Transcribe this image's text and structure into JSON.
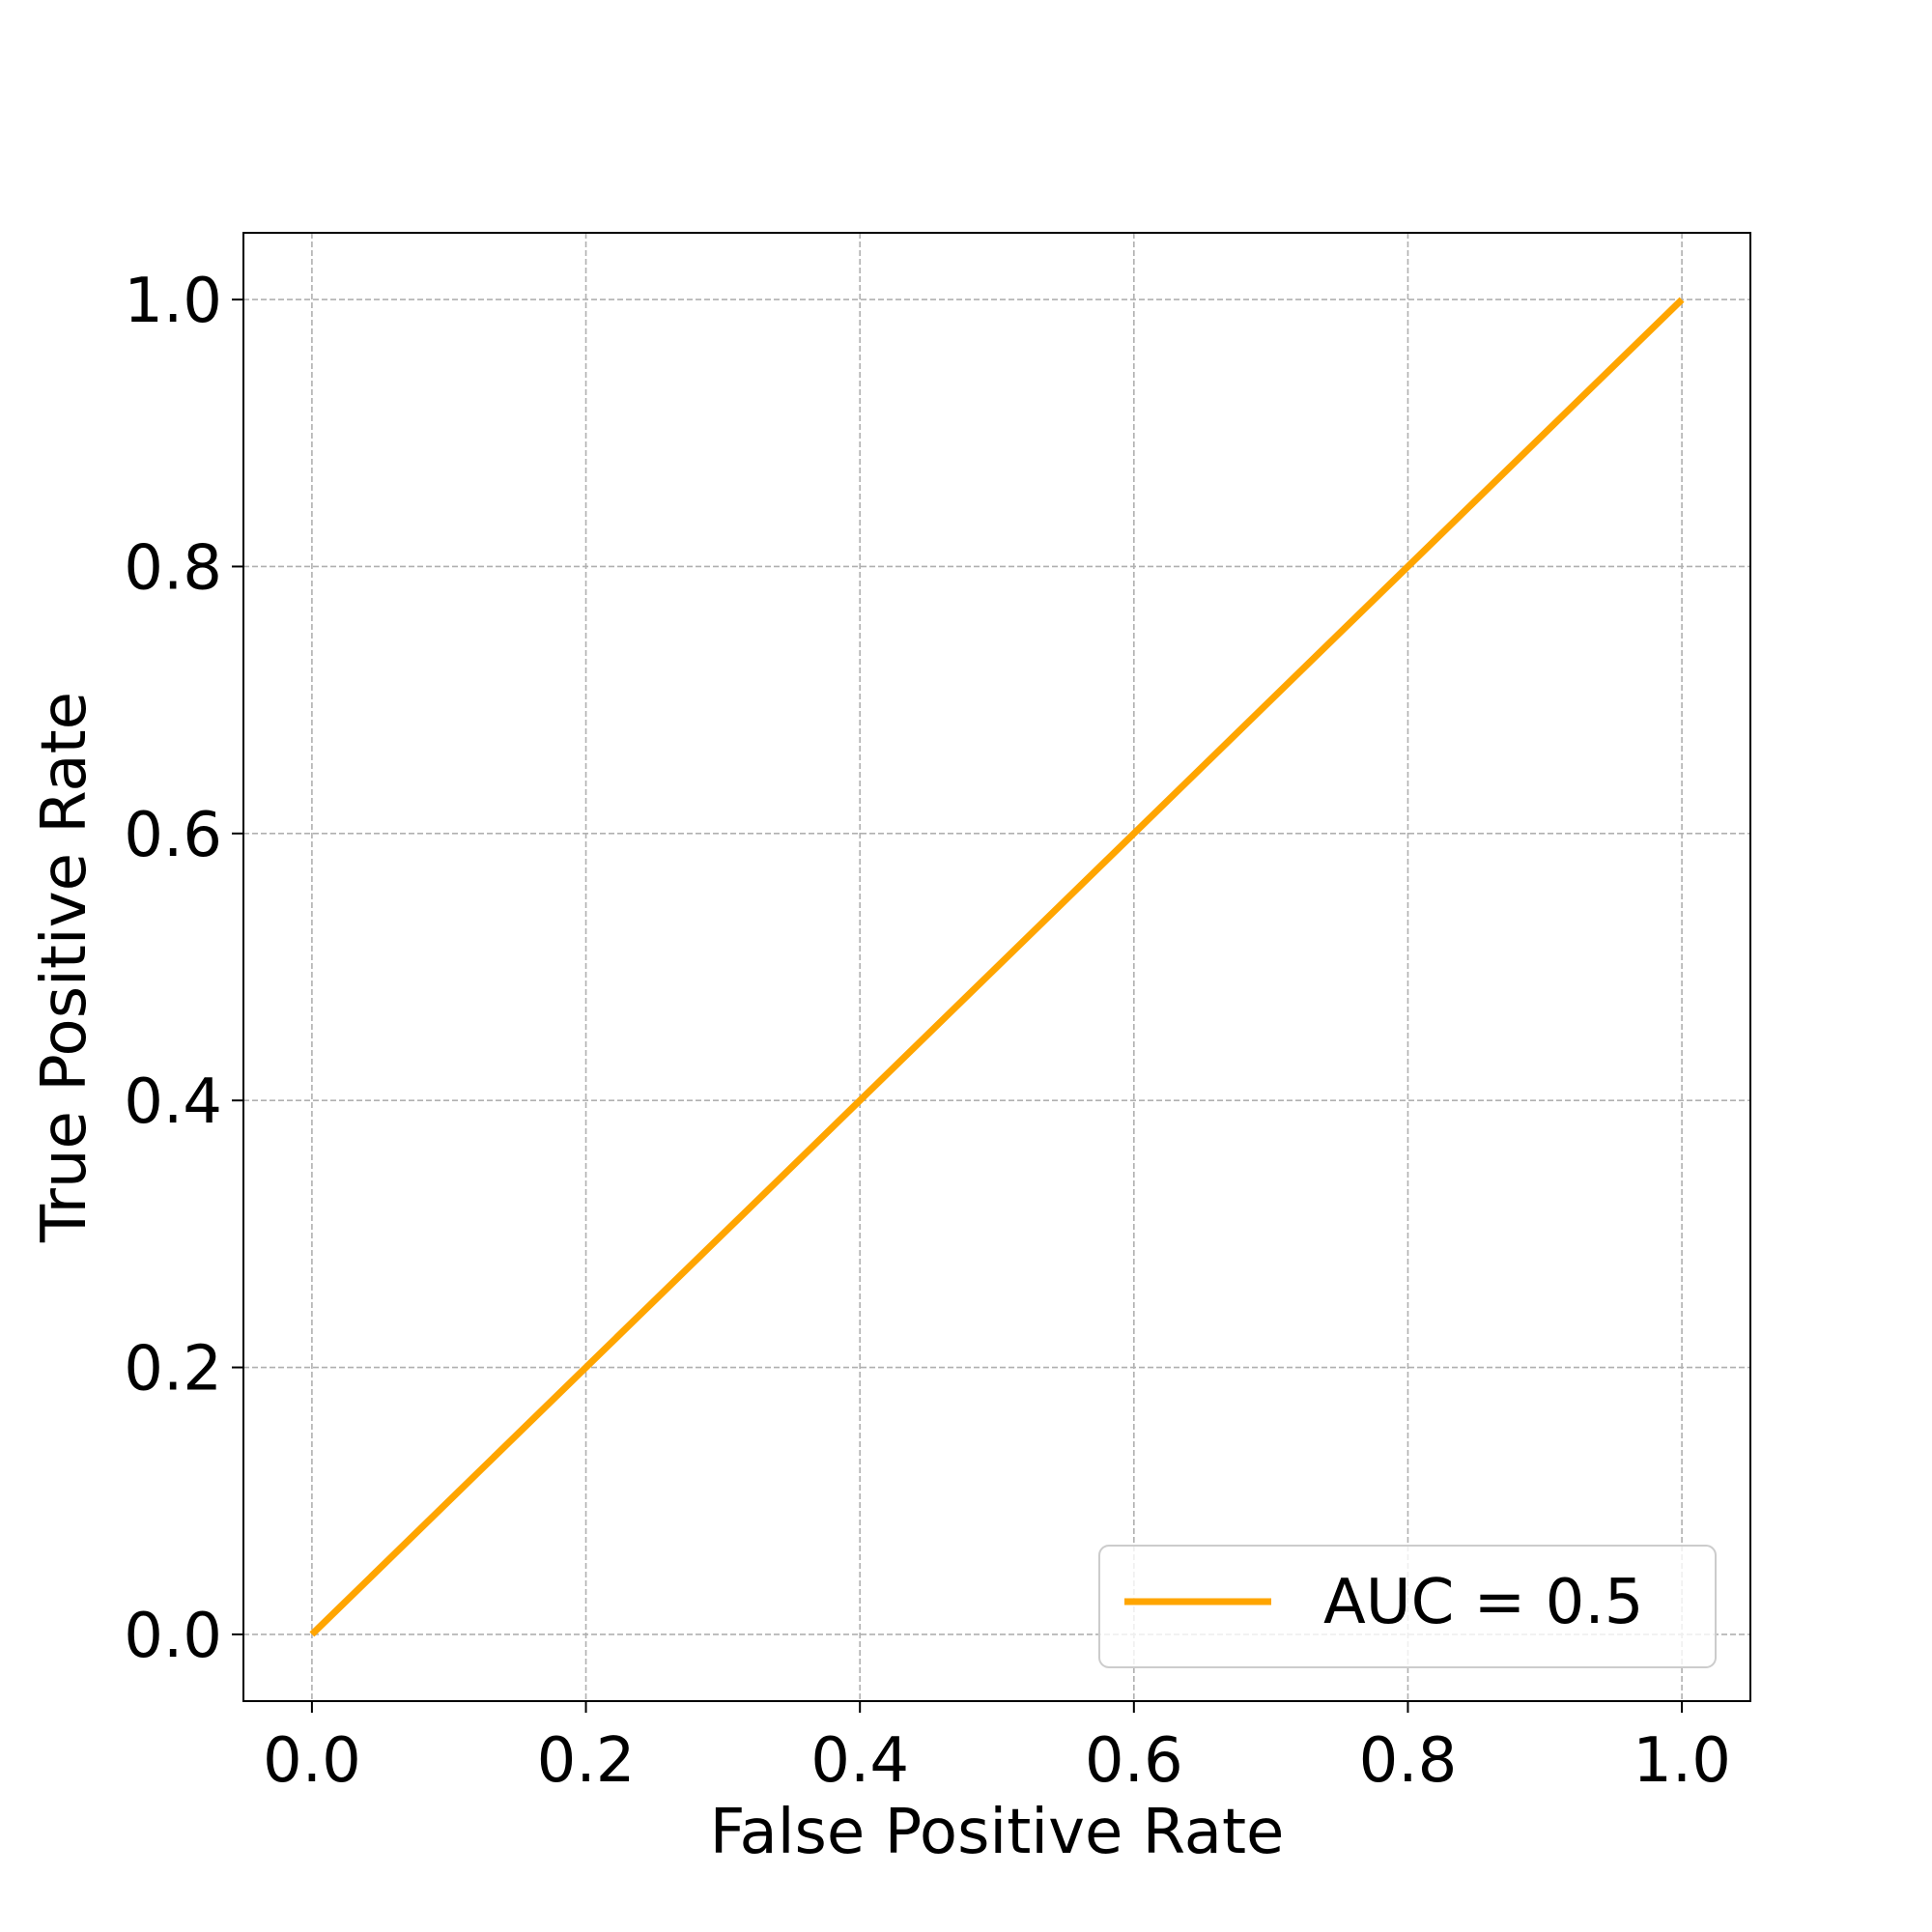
{
  "chart_data": {
    "type": "line",
    "title": "",
    "xlabel": "False Positive Rate",
    "ylabel": "True Positive Rate",
    "xlim": [
      -0.05,
      1.05
    ],
    "ylim": [
      -0.05,
      1.05
    ],
    "xticks": [
      "0.0",
      "0.2",
      "0.4",
      "0.6",
      "0.8",
      "1.0"
    ],
    "yticks": [
      "0.0",
      "0.2",
      "0.4",
      "0.6",
      "0.8",
      "1.0"
    ],
    "grid": true,
    "legend_position": "lower-right",
    "series": [
      {
        "name": "AUC = 0.5",
        "color": "#FFA500",
        "x": [
          0.0,
          1.0
        ],
        "y": [
          0.0,
          1.0
        ]
      }
    ]
  }
}
